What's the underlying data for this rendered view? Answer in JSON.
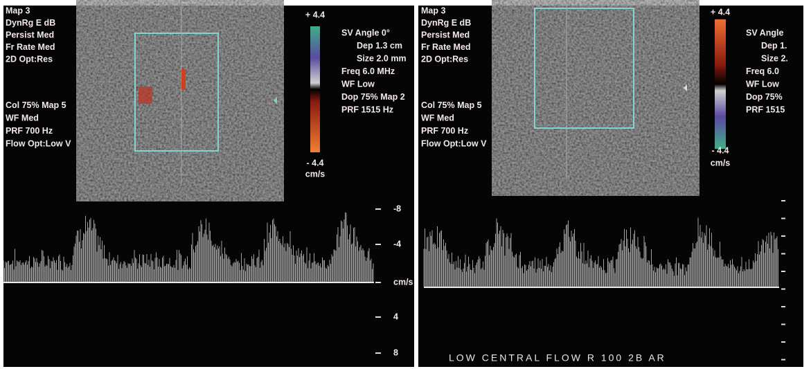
{
  "left_panel": {
    "settings": [
      "Map 3",
      "DynRg E dB",
      "Persist Med",
      "Fr Rate Med",
      "2D Opt:Res",
      "Col 75%  Map 5",
      "WF Med",
      "PRF 700    Hz",
      "Flow Opt:Low V"
    ],
    "color_scale": {
      "max": "+ 4.4",
      "min": "- 4.4",
      "unit": "cm/s"
    },
    "doppler_params": [
      "SV Angle 0°",
      "Dep 1.3  cm",
      "Size 2.0  mm",
      "Freq 6.0  MHz",
      "WF Low",
      "Dop 75%  Map 2",
      "PRF 1515  Hz"
    ],
    "velocity_scale": [
      "-8",
      "-4",
      "cm/s",
      "4",
      "8"
    ]
  },
  "right_panel": {
    "settings": [
      "Map 3",
      "DynRg E dB",
      "Persist Med",
      "Fr Rate Med",
      "2D Opt:Res",
      "Col 75%  Map 5",
      "WF Med",
      "PRF 700    Hz",
      "Flow Opt:Low V"
    ],
    "color_scale": {
      "max": "+ 4.4",
      "min": "- 4.4",
      "unit": "cm/s"
    },
    "doppler_params": [
      "SV Angle",
      "Dep 1.",
      "Size 2.",
      "Freq 6.0",
      "WF Low",
      "Dop 75%",
      "PRF 1515"
    ],
    "footer": "LOW CENTRAL FLOW R 100 2B AR"
  }
}
